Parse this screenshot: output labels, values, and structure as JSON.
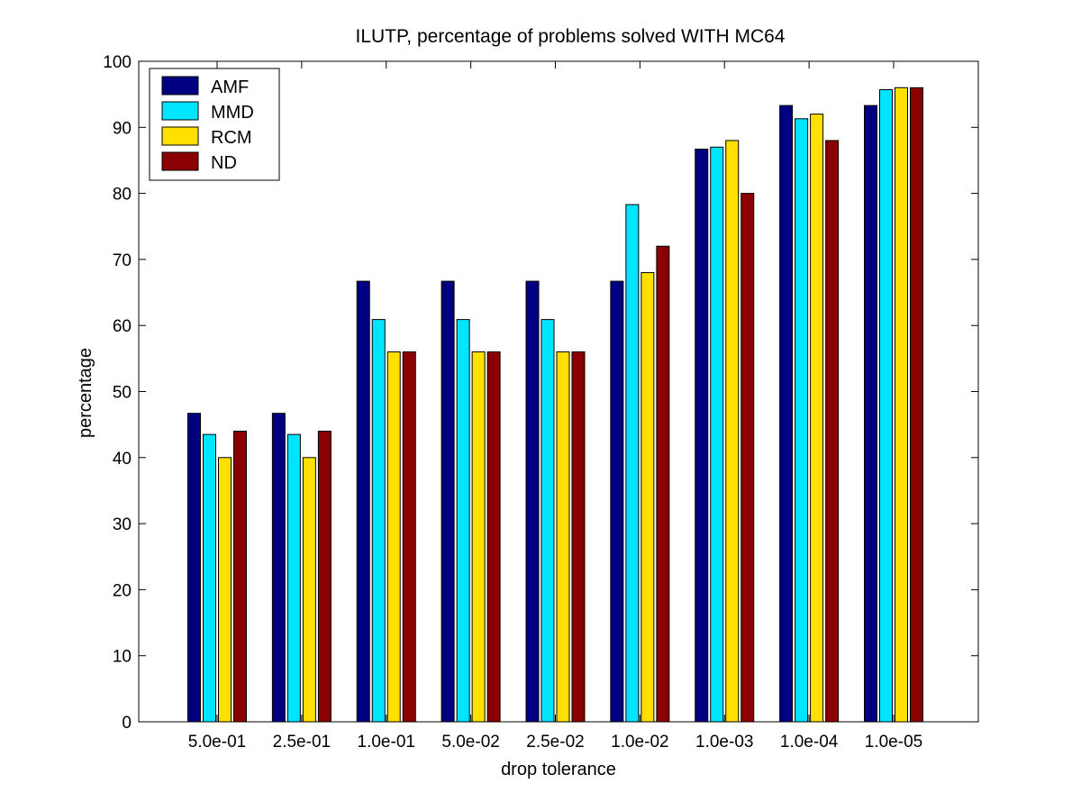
{
  "chart_data": {
    "type": "bar",
    "title": "ILUTP, percentage of problems solved WITH MC64",
    "xlabel": "drop tolerance",
    "ylabel": "percentage",
    "ylim": [
      0,
      100
    ],
    "yticks": [
      0,
      10,
      20,
      30,
      40,
      50,
      60,
      70,
      80,
      90,
      100
    ],
    "grid": false,
    "legend_position": "top-left",
    "categories": [
      "5.0e-01",
      "2.5e-01",
      "1.0e-01",
      "5.0e-02",
      "2.5e-02",
      "1.0e-02",
      "1.0e-03",
      "1.0e-04",
      "1.0e-05"
    ],
    "series": [
      {
        "name": "AMF",
        "color": "#000080",
        "values": [
          46.7,
          46.7,
          66.7,
          66.7,
          66.7,
          66.7,
          86.7,
          93.3,
          93.3
        ]
      },
      {
        "name": "MMD",
        "color": "#00e5ff",
        "values": [
          43.5,
          43.5,
          60.9,
          60.9,
          60.9,
          78.3,
          87.0,
          91.3,
          95.7
        ]
      },
      {
        "name": "RCM",
        "color": "#ffe000",
        "values": [
          40.0,
          40.0,
          56.0,
          56.0,
          56.0,
          68.0,
          88.0,
          92.0,
          96.0
        ]
      },
      {
        "name": "ND",
        "color": "#8b0000",
        "values": [
          44.0,
          44.0,
          56.0,
          56.0,
          56.0,
          72.0,
          80.0,
          88.0,
          96.0
        ]
      }
    ]
  }
}
